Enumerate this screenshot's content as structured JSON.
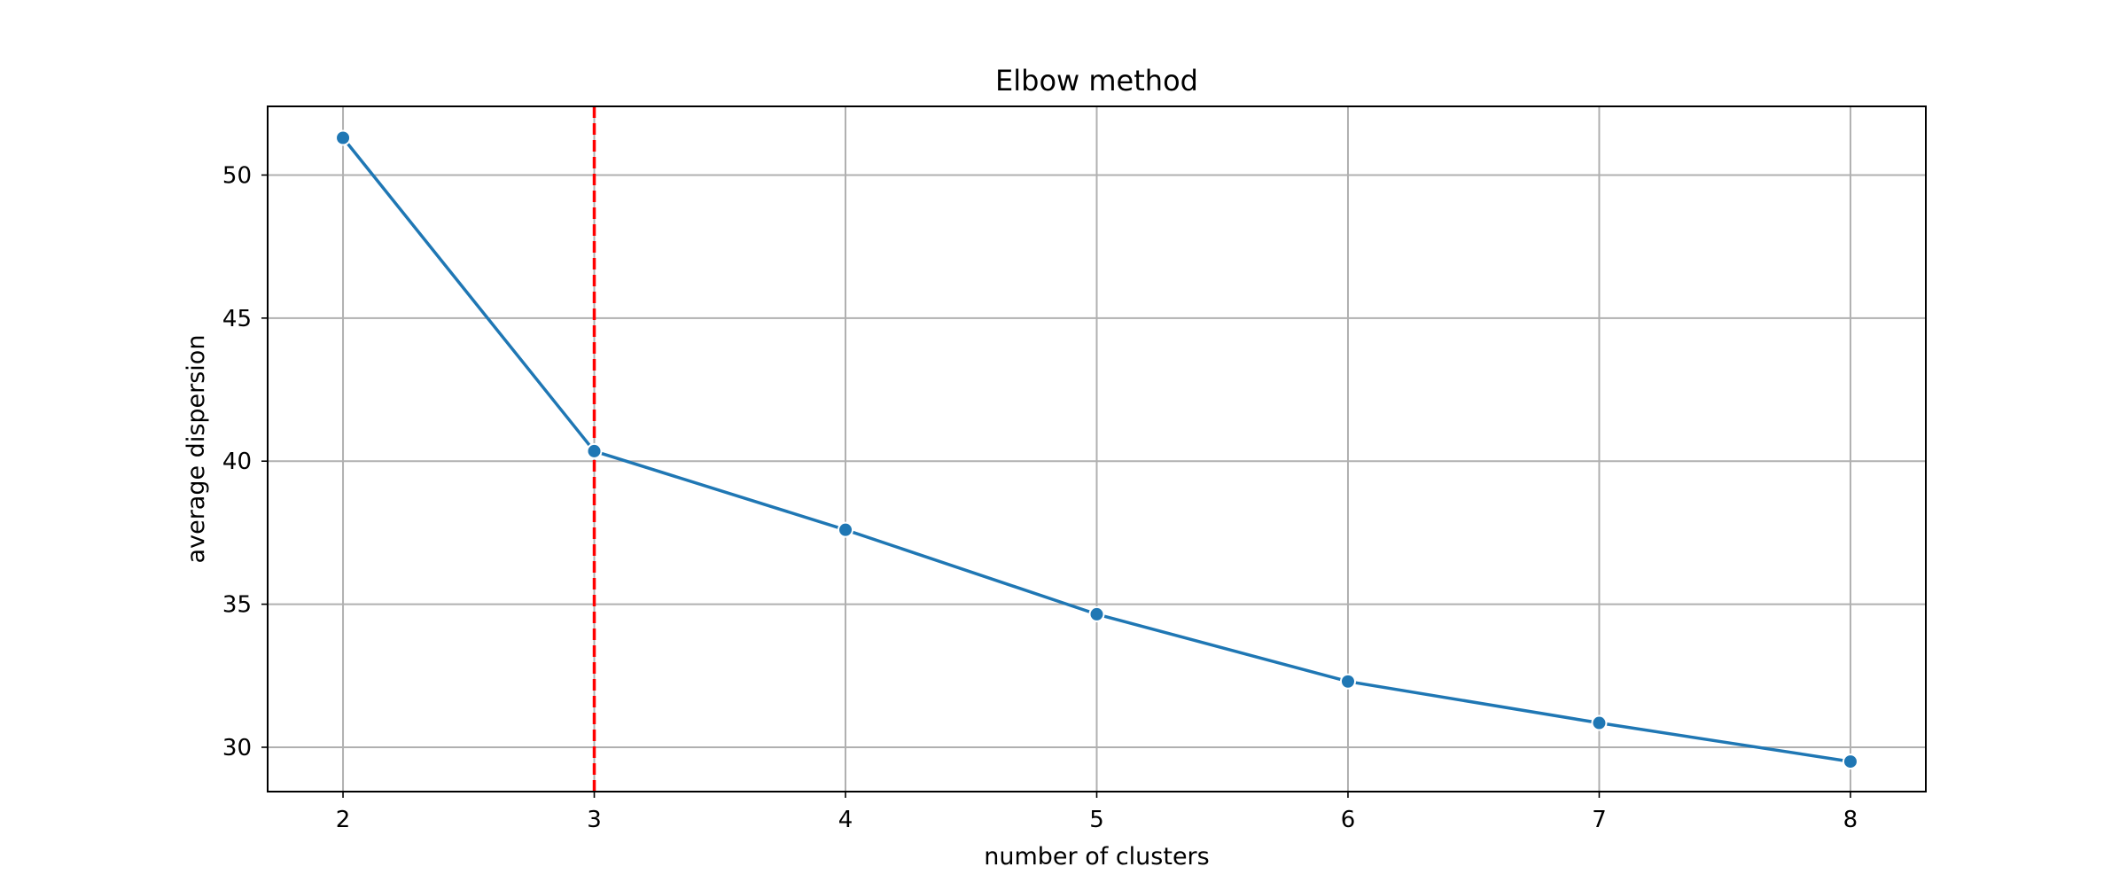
{
  "chart_data": {
    "type": "line",
    "title": "Elbow method",
    "xlabel": "number of clusters",
    "ylabel": "average dispersion",
    "x": [
      2,
      3,
      4,
      5,
      6,
      7,
      8
    ],
    "series": [
      {
        "values": [
          51.3,
          40.35,
          37.6,
          34.65,
          32.3,
          30.85,
          29.5
        ],
        "color": "#1f77b4",
        "marker": "circle"
      }
    ],
    "xticks": [
      2,
      3,
      4,
      5,
      6,
      7,
      8
    ],
    "yticks": [
      30,
      35,
      40,
      45,
      50
    ],
    "xlim": [
      1.7,
      8.3
    ],
    "ylim": [
      28.45,
      52.4
    ],
    "grid": true,
    "reference_line": {
      "orientation": "vertical",
      "x": 3,
      "style": "dashed",
      "color": "#ff0000"
    }
  }
}
